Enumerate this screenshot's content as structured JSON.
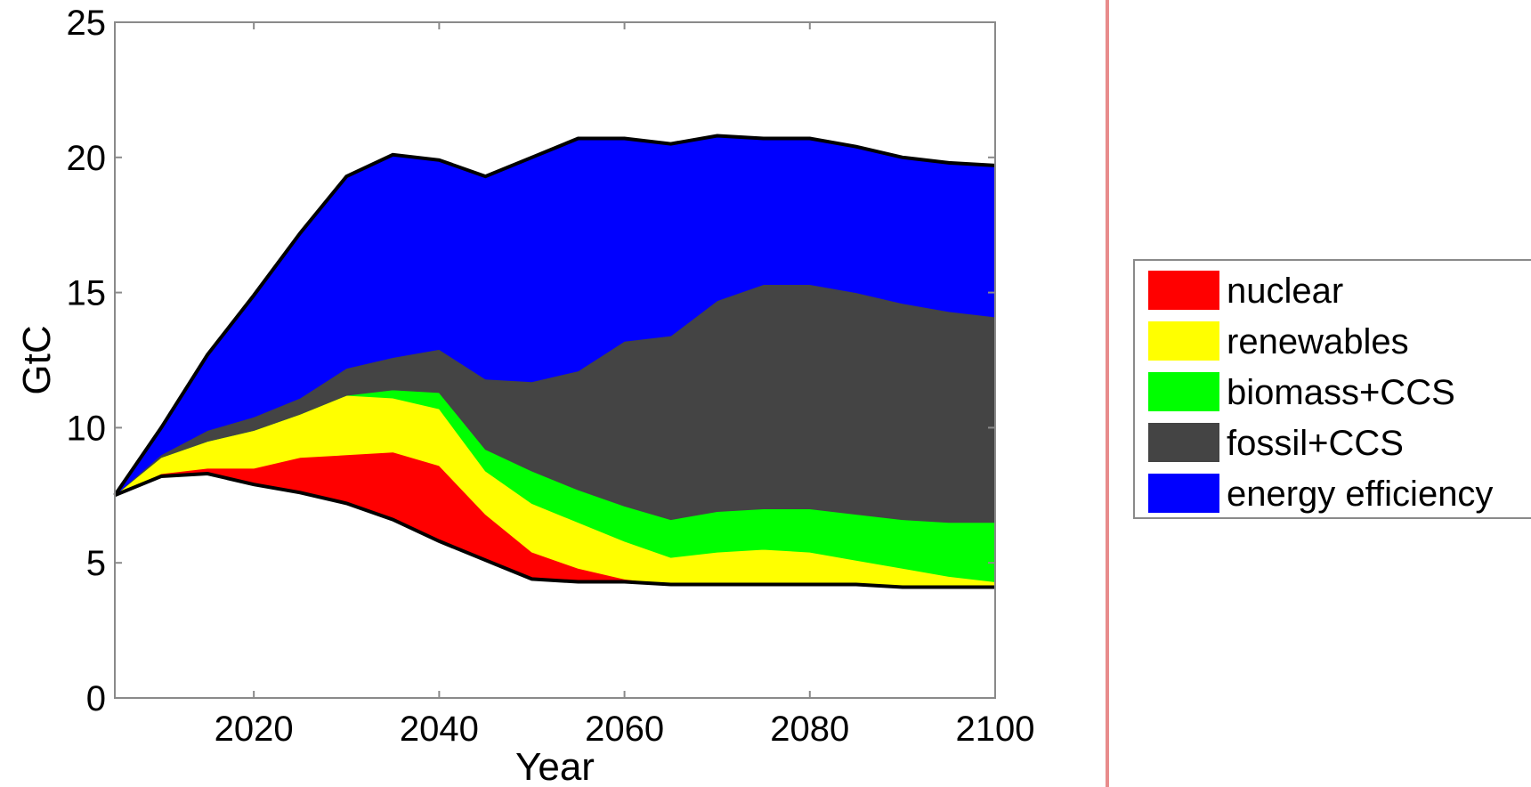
{
  "chart_data": {
    "type": "area",
    "stacked": true,
    "xlabel": "Year",
    "ylabel": "GtC",
    "xlim": [
      2005,
      2100
    ],
    "ylim": [
      0,
      25
    ],
    "xticks": [
      2020,
      2040,
      2060,
      2080,
      2100
    ],
    "yticks": [
      0,
      5,
      10,
      15,
      20,
      25
    ],
    "grid": false,
    "legend_position": "right",
    "x": [
      2005,
      2010,
      2015,
      2020,
      2025,
      2030,
      2035,
      2040,
      2045,
      2050,
      2055,
      2060,
      2065,
      2070,
      2075,
      2080,
      2085,
      2090,
      2095,
      2100
    ],
    "baseline": [
      7.5,
      8.2,
      8.3,
      7.9,
      7.6,
      7.2,
      6.6,
      5.8,
      5.1,
      4.4,
      4.3,
      4.3,
      4.2,
      4.2,
      4.2,
      4.2,
      4.2,
      4.1,
      4.1,
      4.1
    ],
    "series": [
      {
        "name": "nuclear",
        "color": "#ff0000",
        "values": [
          0,
          0.1,
          0.2,
          0.6,
          1.3,
          1.8,
          2.5,
          2.8,
          1.7,
          1.0,
          0.5,
          0.1,
          0,
          0,
          0,
          0,
          0,
          0,
          0,
          0
        ]
      },
      {
        "name": "renewables",
        "color": "#ffff00",
        "values": [
          0,
          0.6,
          1.0,
          1.4,
          1.6,
          2.2,
          2.0,
          2.1,
          1.6,
          1.8,
          1.7,
          1.4,
          1.0,
          1.2,
          1.3,
          1.2,
          0.9,
          0.7,
          0.4,
          0.2
        ]
      },
      {
        "name": "biomass+CCS",
        "color": "#00ff00",
        "values": [
          0,
          0,
          0,
          0,
          0,
          0,
          0.3,
          0.6,
          0.8,
          1.2,
          1.2,
          1.3,
          1.4,
          1.5,
          1.5,
          1.6,
          1.7,
          1.8,
          2.0,
          2.2
        ]
      },
      {
        "name": "fossil+CCS",
        "color": "#444444",
        "values": [
          0,
          0.1,
          0.4,
          0.5,
          0.6,
          1.0,
          1.2,
          1.6,
          2.6,
          3.3,
          4.4,
          6.1,
          6.8,
          7.8,
          8.3,
          8.3,
          8.2,
          8.0,
          7.8,
          7.6
        ]
      },
      {
        "name": "energy efficiency",
        "color": "#0000ff",
        "values": [
          0,
          1.0,
          2.8,
          4.5,
          6.1,
          7.1,
          7.5,
          7.0,
          7.5,
          8.3,
          8.6,
          7.5,
          7.1,
          6.1,
          5.4,
          5.4,
          5.4,
          5.4,
          5.5,
          5.6
        ]
      }
    ]
  }
}
